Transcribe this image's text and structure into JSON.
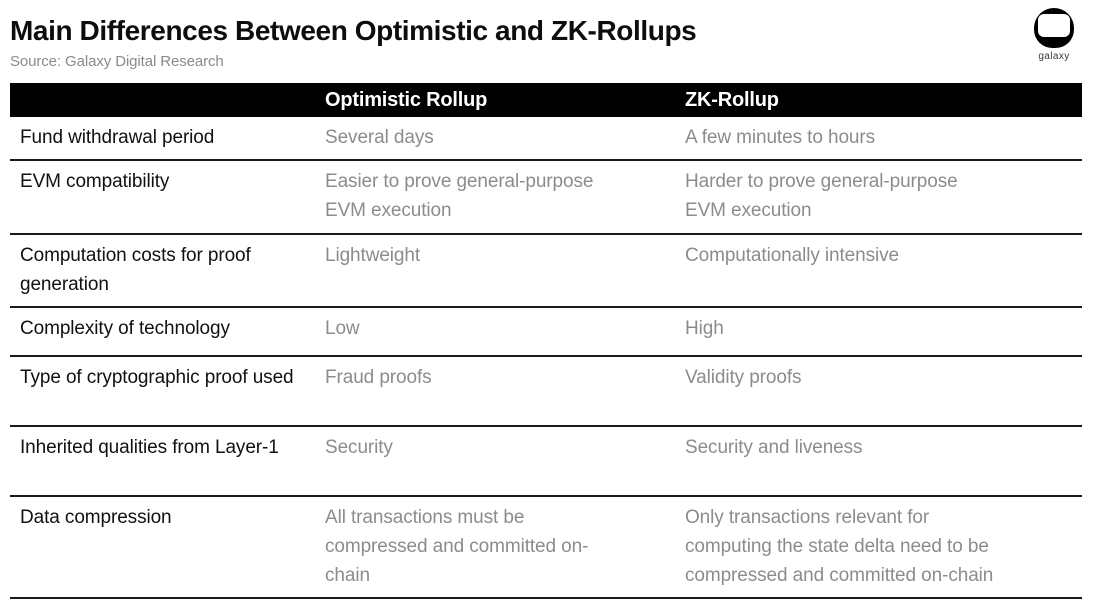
{
  "header": {
    "title": "Main Differences Between Optimistic and ZK-Rollups",
    "source": "Source: Galaxy Digital Research",
    "logo_word": "galaxy"
  },
  "table": {
    "columns": {
      "label": "",
      "optimistic": "Optimistic Rollup",
      "zk": "ZK-Rollup"
    },
    "rows": [
      {
        "label": "Fund withdrawal period",
        "optimistic": "Several days",
        "zk": "A few minutes to hours"
      },
      {
        "label": "EVM compatibility",
        "optimistic": "Easier to prove general-purpose EVM execution",
        "zk": "Harder to prove general-purpose EVM execution"
      },
      {
        "label": "Computation costs for proof generation",
        "optimistic": "Lightweight",
        "zk": "Computationally intensive"
      },
      {
        "label": "Complexity of technology",
        "optimistic": "Low",
        "zk": "High"
      },
      {
        "label": "Type of cryptographic proof used",
        "optimistic": "Fraud proofs",
        "zk": "Validity proofs"
      },
      {
        "label": "Inherited qualities from Layer-1",
        "optimistic": "Security",
        "zk": "Security and liveness"
      },
      {
        "label": "Data compression",
        "optimistic": "All transactions must be compressed and committed on-chain",
        "zk": "Only transactions relevant for computing the state delta need to be compressed and committed on-chain"
      }
    ]
  },
  "colors": {
    "header_bg": "#000000",
    "header_text": "#ffffff",
    "label_text": "#111111",
    "value_text": "#8c8c8c",
    "source_text": "#8a8a8a",
    "divider": "#1a1a1a",
    "page_bg": "#ffffff"
  }
}
